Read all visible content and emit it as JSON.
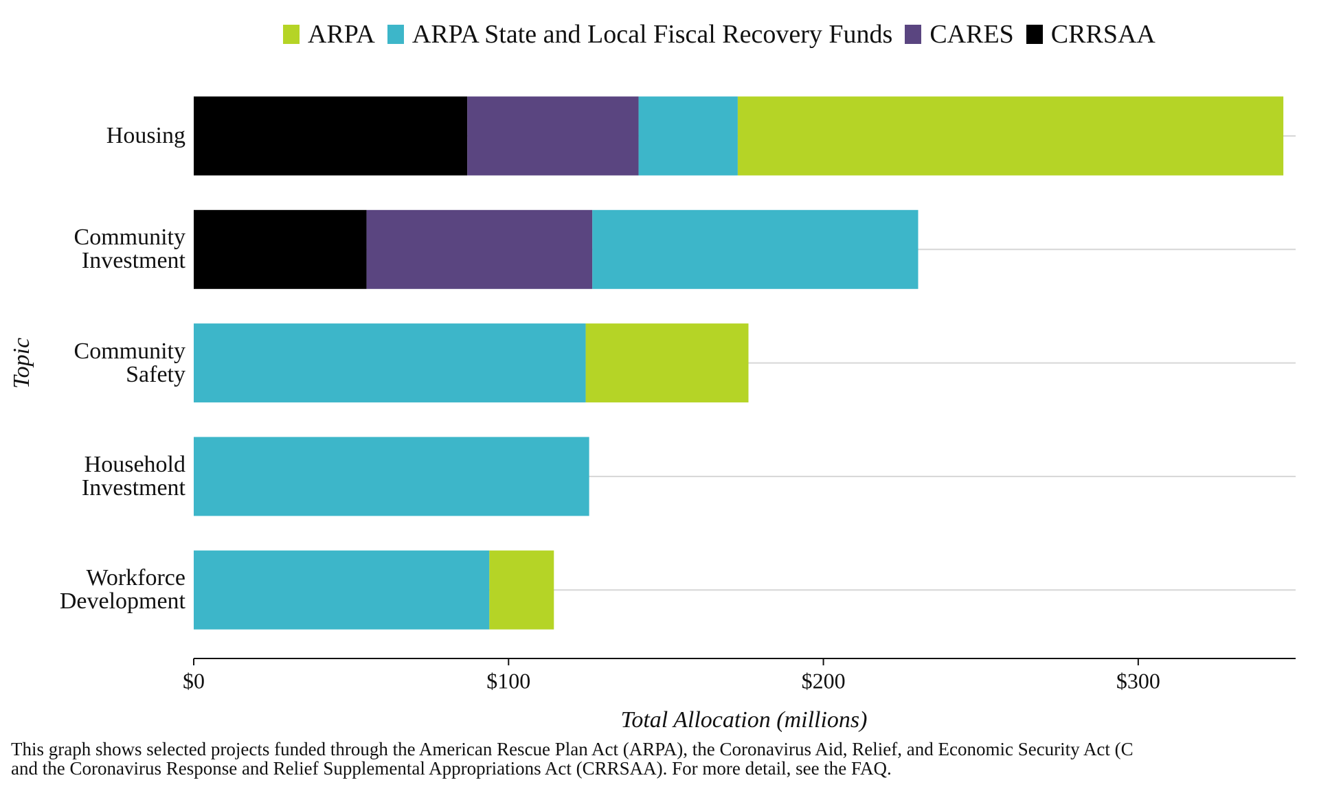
{
  "chart_data": {
    "type": "stacked-bar-horizontal",
    "categories": [
      "Housing",
      "Community Investment",
      "Community Safety",
      "Household Investment",
      "Workforce Development"
    ],
    "series": [
      {
        "name": "ARPA",
        "color": "#b5d426",
        "values": [
          173.3,
          null,
          51.7,
          null,
          20.5
        ]
      },
      {
        "name": "ARPA State and Local Fiscal Recovery Funds",
        "color": "#3db6c9",
        "values": [
          31.5,
          103.5,
          124.5,
          125.6,
          93.9
        ]
      },
      {
        "name": "CARES",
        "color": "#5a4580",
        "values": [
          54.4,
          71.7,
          null,
          null,
          null
        ]
      },
      {
        "name": "CRRSAA",
        "color": "#000000",
        "values": [
          86.9,
          54.9,
          null,
          null,
          null
        ]
      }
    ],
    "stack_order": [
      "CRRSAA",
      "CARES",
      "ARPA State and Local Fiscal Recovery Funds",
      "ARPA"
    ],
    "xlim": [
      0,
      350
    ],
    "xticks": [
      {
        "value": 0,
        "label": "$0"
      },
      {
        "value": 100,
        "label": "$100"
      },
      {
        "value": 200,
        "label": "$200"
      },
      {
        "value": 300,
        "label": "$300"
      }
    ],
    "x_label": "Total Allocation (millions)",
    "y_label": "Topic",
    "grid": true,
    "legend": "top",
    "footnote": [
      "This graph shows selected projects funded through the American Rescue Plan Act (ARPA), the Coronavirus Aid, Relief, and Economic Security Act (C",
      "and the Coronavirus Response and Relief Supplemental Appropriations Act (CRRSAA). For more detail, see the FAQ."
    ]
  }
}
